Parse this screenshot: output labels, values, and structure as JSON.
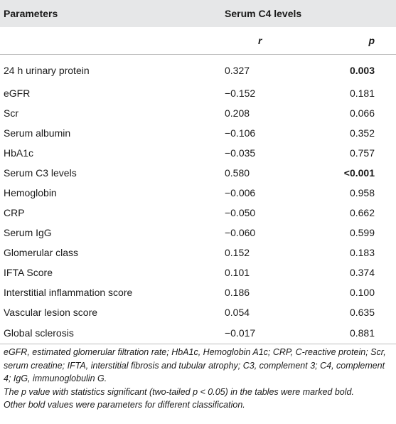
{
  "table": {
    "header": {
      "parameters": "Parameters",
      "group": "Serum C4 levels",
      "r": "r",
      "p": "p"
    },
    "rows": [
      {
        "name": "24 h urinary protein",
        "r": "0.327",
        "p": "0.003",
        "bold": true
      },
      {
        "name": "eGFR",
        "r": "−0.152",
        "p": "0.181",
        "bold": false
      },
      {
        "name": "Scr",
        "r": "0.208",
        "p": "0.066",
        "bold": false
      },
      {
        "name": "Serum albumin",
        "r": "−0.106",
        "p": "0.352",
        "bold": false
      },
      {
        "name": "HbA1c",
        "r": "−0.035",
        "p": "0.757",
        "bold": false
      },
      {
        "name": "Serum C3 levels",
        "r": "0.580",
        "p": "<0.001",
        "bold": true
      },
      {
        "name": "Hemoglobin",
        "r": "−0.006",
        "p": "0.958",
        "bold": false
      },
      {
        "name": "CRP",
        "r": "−0.050",
        "p": "0.662",
        "bold": false
      },
      {
        "name": "Serum IgG",
        "r": "−0.060",
        "p": "0.599",
        "bold": false
      },
      {
        "name": "Glomerular class",
        "r": "0.152",
        "p": "0.183",
        "bold": false
      },
      {
        "name": "IFTA Score",
        "r": "0.101",
        "p": "0.374",
        "bold": false
      },
      {
        "name": "Interstitial inflammation score",
        "r": "0.186",
        "p": "0.100",
        "bold": false
      },
      {
        "name": "Vascular lesion score",
        "r": "0.054",
        "p": "0.635",
        "bold": false
      },
      {
        "name": "Global sclerosis",
        "r": "−0.017",
        "p": "0.881",
        "bold": false
      }
    ]
  },
  "footnote": {
    "abbreviations": "eGFR, estimated glomerular filtration rate; HbA1c, Hemoglobin A1c; CRP, C-reactive protein; Scr, serum creatine; IFTA, interstitial fibrosis and tubular atrophy; C3, complement 3; C4, complement 4; IgG, immunoglobulin G.",
    "significance": "The p value with statistics significant (two-tailed p < 0.05) in the tables were marked bold.",
    "other": "Other bold values were parameters for different classification."
  }
}
